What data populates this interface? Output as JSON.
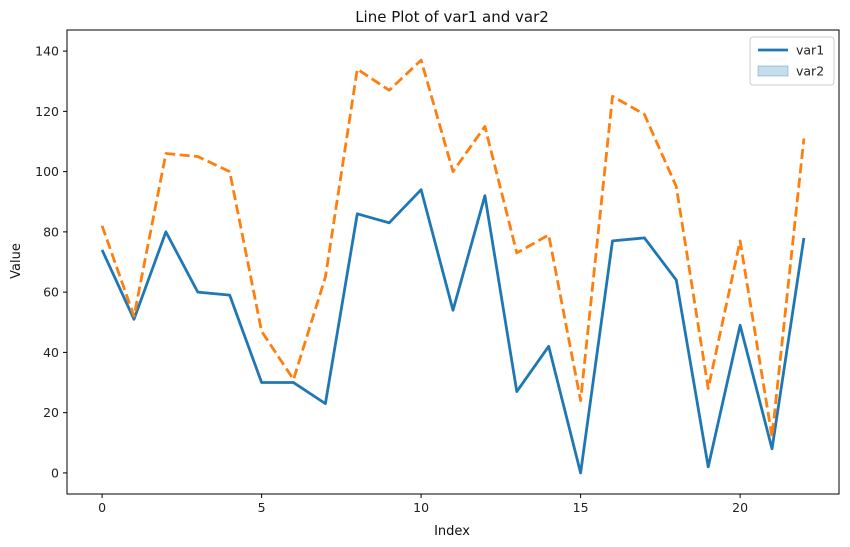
{
  "chart_data": {
    "type": "line",
    "title": "Line Plot of var1 and var2",
    "xlabel": "Index",
    "ylabel": "Value",
    "x": [
      0,
      1,
      2,
      3,
      4,
      5,
      6,
      7,
      8,
      9,
      10,
      11,
      12,
      13,
      14,
      15,
      16,
      17,
      18,
      19,
      20,
      21,
      22
    ],
    "xlim": [
      -1.1,
      23.1
    ],
    "ylim": [
      -7,
      147
    ],
    "xticks": [
      0,
      5,
      10,
      15,
      20
    ],
    "yticks": [
      0,
      20,
      40,
      60,
      80,
      100,
      120,
      140
    ],
    "grid": false,
    "legend_position": "top-right",
    "series": [
      {
        "name": "var1",
        "color": "#1f77b4",
        "style": "solid",
        "legend_marker": "line",
        "values": [
          74,
          51,
          80,
          60,
          59,
          30,
          30,
          23,
          86,
          83,
          94,
          54,
          92,
          27,
          42,
          0,
          77,
          78,
          64,
          2,
          49,
          8,
          78
        ]
      },
      {
        "name": "var2",
        "color": "#ff7f0e",
        "style": "dashed",
        "legend_marker": "patch",
        "legend_color": "#1f77b4",
        "values": [
          82,
          52,
          106,
          105,
          100,
          47,
          31,
          65,
          134,
          127,
          137,
          100,
          115,
          73,
          79,
          24,
          125,
          119,
          95,
          28,
          77,
          12,
          111
        ]
      }
    ]
  }
}
